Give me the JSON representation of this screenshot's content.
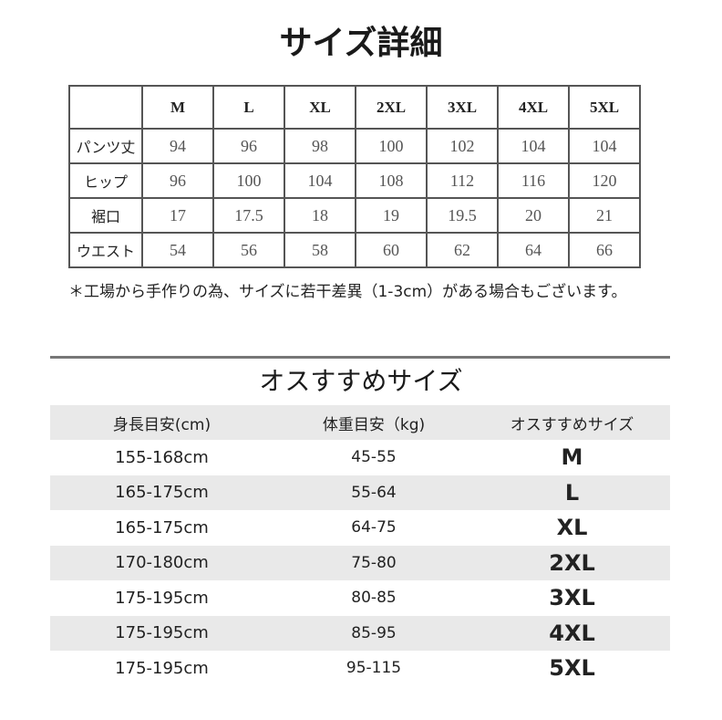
{
  "size_detail": {
    "title": "サイズ詳細",
    "headers": [
      "",
      "M",
      "L",
      "XL",
      "2XL",
      "3XL",
      "4XL",
      "5XL"
    ],
    "rows": [
      {
        "label": "パンツ丈",
        "values": [
          "94",
          "96",
          "98",
          "100",
          "102",
          "104",
          "104"
        ]
      },
      {
        "label": "ヒップ",
        "values": [
          "96",
          "100",
          "104",
          "108",
          "112",
          "116",
          "120"
        ]
      },
      {
        "label": "裾口",
        "values": [
          "17",
          "17.5",
          "18",
          "19",
          "19.5",
          "20",
          "21"
        ]
      },
      {
        "label": "ウエスト",
        "values": [
          "54",
          "56",
          "58",
          "60",
          "62",
          "64",
          "66"
        ]
      }
    ],
    "note": "＊工場から手作りの為、サイズに若干差異（1-3cm）がある場合もございます。"
  },
  "recommend": {
    "title": "オスすすめサイズ",
    "headers": [
      "身長目安(cm)",
      "体重目安（kg)",
      "オスすすめサイズ"
    ],
    "rows": [
      [
        "155-168cm",
        "45-55",
        "M"
      ],
      [
        "165-175cm",
        "55-64",
        "L"
      ],
      [
        "165-175cm",
        "64-75",
        "XL"
      ],
      [
        "170-180cm",
        "75-80",
        "2XL"
      ],
      [
        "175-195cm",
        "80-85",
        "3XL"
      ],
      [
        "175-195cm",
        "85-95",
        "4XL"
      ],
      [
        "175-195cm",
        "95-115",
        "5XL"
      ]
    ]
  }
}
